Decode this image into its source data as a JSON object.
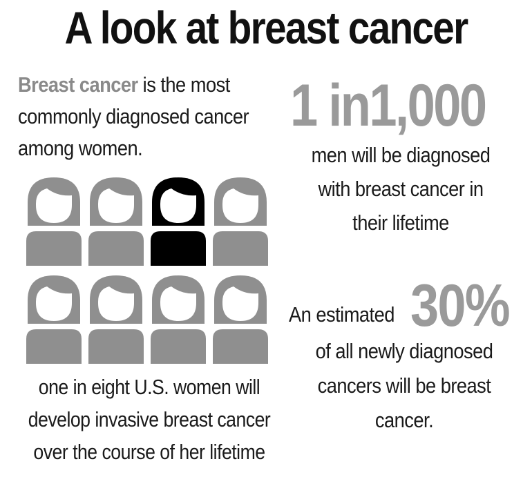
{
  "title": "A look at breast cancer",
  "intro": {
    "highlight": "Breast cancer",
    "rest": " is the most commonly diagnosed cancer among women."
  },
  "figures": {
    "total": 8,
    "highlighted_index": 2,
    "colors": {
      "default": "#8f8f8f",
      "highlighted": "#000000",
      "face": "#ffffff"
    }
  },
  "women_stat_text": "one in eight U.S. women will develop invasive breast cancer over the course of her lifetime",
  "men_stat": {
    "value": "1 in1,000",
    "text": "men will be diagnosed with breast cancer in their lifetime"
  },
  "share_stat": {
    "lead": "An estimated",
    "value": "30%",
    "text": "of all newly diagnosed cancers will be breast cancer."
  },
  "colors": {
    "accent_gray": "#9a9a9a",
    "text": "#1a1a1a"
  }
}
